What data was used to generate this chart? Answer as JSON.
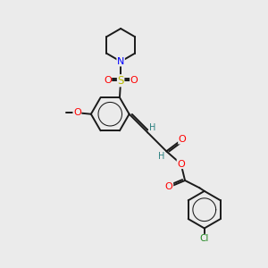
{
  "bg_color": "#ebebeb",
  "atom_colors": {
    "N": "#0000ff",
    "O": "#ff0000",
    "S": "#bbbb00",
    "Cl": "#228822",
    "C": "#1a1a1a",
    "H": "#2a8080"
  },
  "bond_color": "#1a1a1a",
  "bond_lw": 1.4
}
